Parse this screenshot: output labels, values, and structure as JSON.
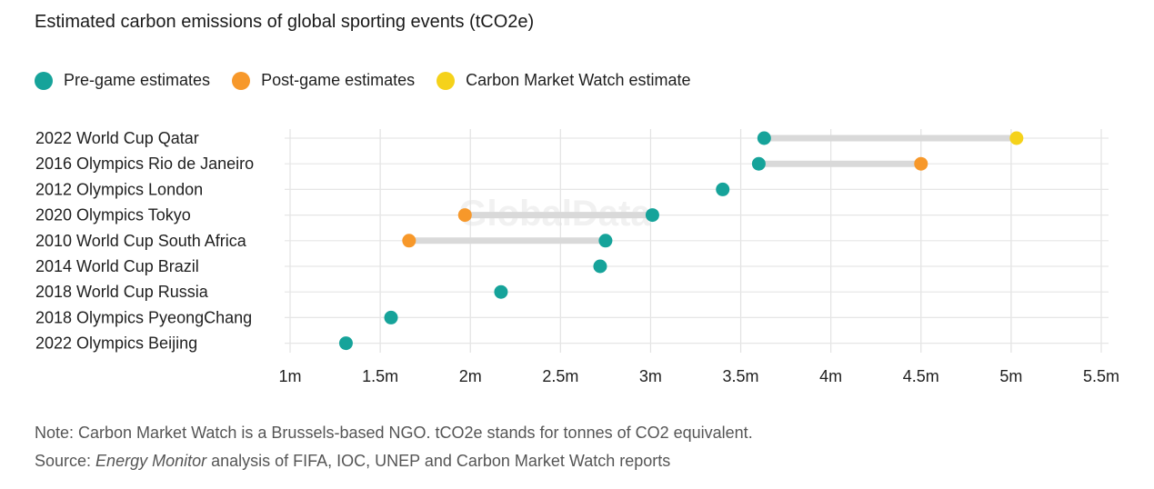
{
  "title": "Estimated carbon emissions of global sporting events (tCO2e)",
  "legend": [
    {
      "label": "Pre-game estimates",
      "color": "#16a39a"
    },
    {
      "label": "Post-game estimates",
      "color": "#f7982a"
    },
    {
      "label": "Carbon Market Watch estimate",
      "color": "#f5d21a"
    }
  ],
  "notes": {
    "note": "Note: Carbon Market Watch is a Brussels-based NGO. tCO2e stands for tonnes of CO2 equivalent.",
    "source_prefix": "Source: ",
    "source_italic": "Energy Monitor",
    "source_rest": " analysis of FIFA, IOC, UNEP and Carbon Market Watch reports"
  },
  "watermark": "GlobalData",
  "chart_data": {
    "type": "dumbbell",
    "title": "Estimated carbon emissions of global sporting events (tCO2e)",
    "xlim": [
      1000000,
      5500000
    ],
    "x_ticks": [
      1000000,
      1500000,
      2000000,
      2500000,
      3000000,
      3500000,
      4000000,
      4500000,
      5000000,
      5500000
    ],
    "x_tick_labels": [
      "1m",
      "1.5m",
      "2m",
      "2.5m",
      "3m",
      "3.5m",
      "4m",
      "4.5m",
      "5m",
      "5.5m"
    ],
    "grid": true,
    "legend_position": "top-left",
    "categories": [
      "2022 World Cup Qatar",
      "2016 Olympics Rio de Janeiro",
      "2012 Olympics London",
      "2020 Olympics Tokyo",
      "2010 World Cup South Africa",
      "2014 World Cup Brazil",
      "2018 World Cup Russia",
      "2018 Olympics PyeongChang",
      "2022 Olympics Beijing"
    ],
    "series": [
      {
        "name": "Pre-game estimates",
        "color": "#16a39a",
        "values": [
          3630000,
          3600000,
          3400000,
          3010000,
          2750000,
          2720000,
          2170000,
          1560000,
          1310000
        ]
      },
      {
        "name": "Post-game estimates",
        "color": "#f7982a",
        "values": [
          null,
          4500000,
          null,
          1970000,
          1660000,
          null,
          null,
          null,
          null
        ]
      },
      {
        "name": "Carbon Market Watch estimate",
        "color": "#f5d21a",
        "values": [
          5030000,
          null,
          null,
          null,
          null,
          null,
          null,
          null,
          null
        ]
      }
    ]
  }
}
